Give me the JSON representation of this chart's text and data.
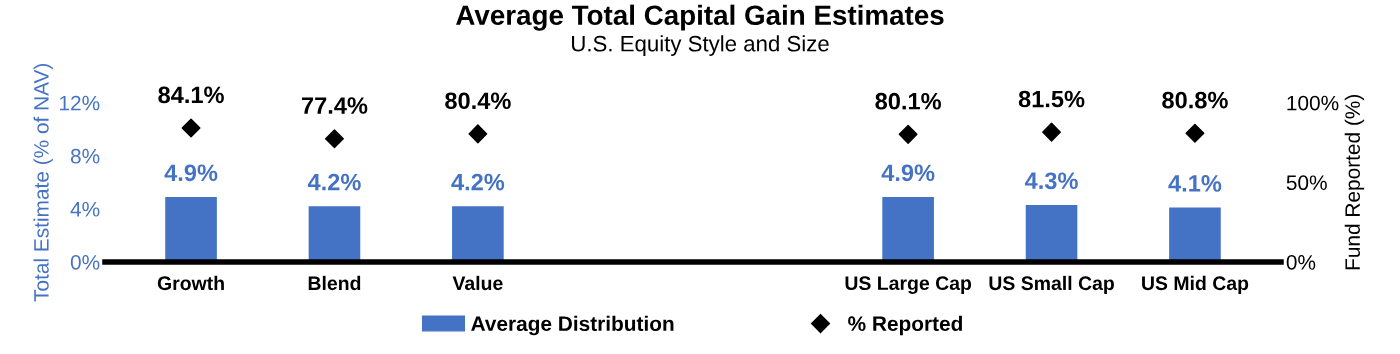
{
  "chart_data": {
    "type": "bar",
    "title": "Average Total Capital Gain Estimates",
    "subtitle": "U.S. Equity Style and Size",
    "ylabel": "Total Estimate (% of NAV)",
    "y2label": "Fund Reported (%)",
    "categories": [
      "Growth",
      "Blend",
      "Value",
      null,
      null,
      "US Large Cap",
      "US Small Cap",
      "US Mid Cap"
    ],
    "series": [
      {
        "name": "Average Distribution",
        "color": "#4472c4",
        "values": [
          4.9,
          4.2,
          4.2,
          null,
          null,
          4.9,
          4.3,
          4.1
        ],
        "value_labels": [
          "4.9%",
          "4.2%",
          "4.2%",
          null,
          null,
          "4.9%",
          "4.3%",
          "4.1%"
        ]
      },
      {
        "name": "% Reported",
        "type": "scatter",
        "axis": "y2",
        "marker": "diamond",
        "color": "#000000",
        "values": [
          84.1,
          77.4,
          80.4,
          null,
          null,
          80.1,
          81.5,
          80.8
        ],
        "value_labels": [
          "84.1%",
          "77.4%",
          "80.4%",
          null,
          null,
          "80.1%",
          "81.5%",
          "80.8%"
        ]
      }
    ],
    "ylim": [
      0,
      12
    ],
    "yticks": [
      {
        "value": 0,
        "label": "0%"
      },
      {
        "value": 4,
        "label": "4%"
      },
      {
        "value": 8,
        "label": "8%"
      },
      {
        "value": 12,
        "label": "12%"
      }
    ],
    "y2lim": [
      0,
      100
    ],
    "y2ticks": [
      {
        "value": 0,
        "label": "0%"
      },
      {
        "value": 50,
        "label": "50%"
      },
      {
        "value": 100,
        "label": "100%"
      }
    ],
    "grid": false,
    "legend": "bottom"
  }
}
